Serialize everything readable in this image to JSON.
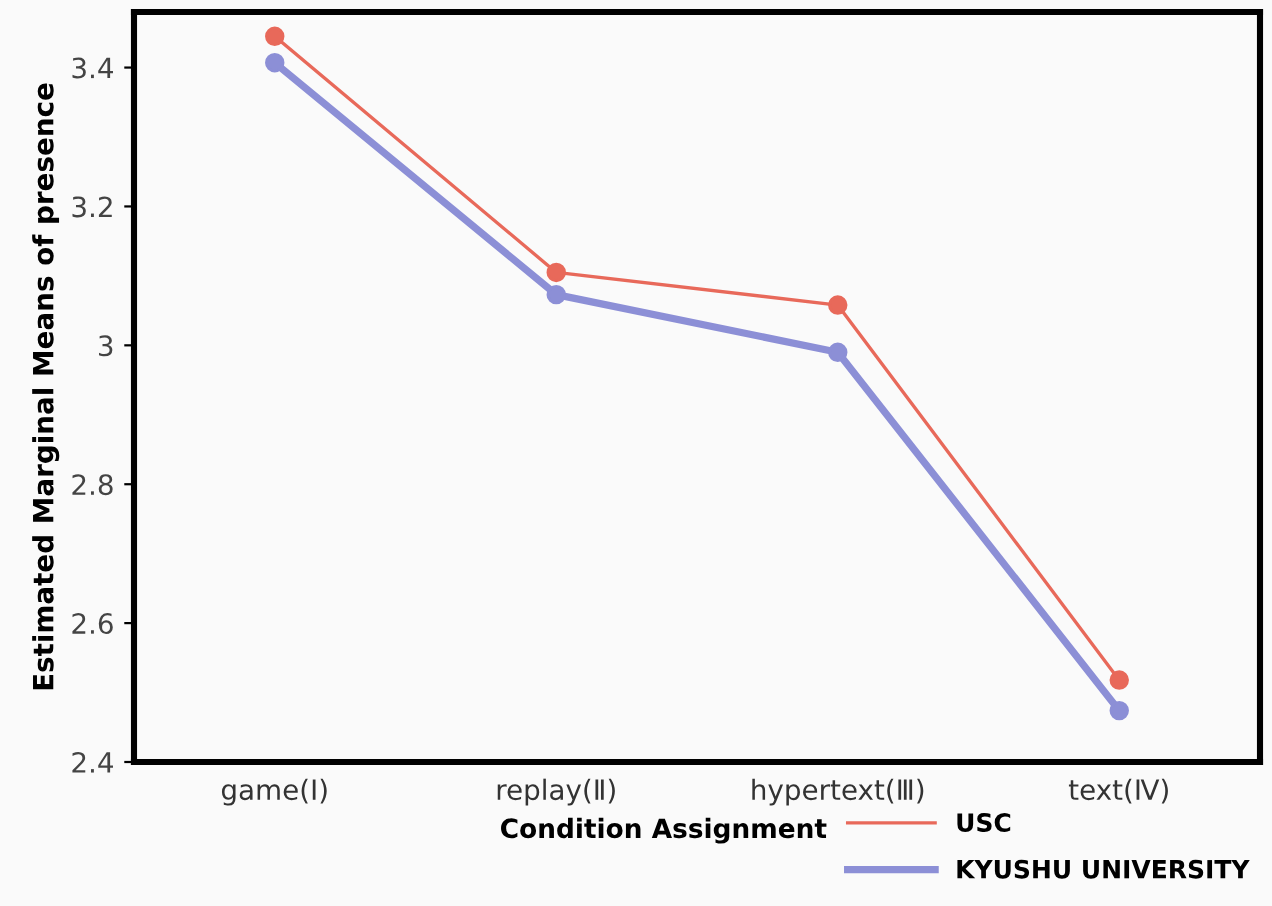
{
  "chart_data": {
    "type": "line",
    "ylabel": "Estimated Marginal Means of presence",
    "legend_title": "Condition Assignment",
    "categories": [
      "game(Ⅰ)",
      "replay(Ⅱ)",
      "hypertext(Ⅲ)",
      "text(Ⅳ)"
    ],
    "series": [
      {
        "name": "USC",
        "color": "#e8695a",
        "values": [
          3.445,
          3.105,
          3.058,
          2.518
        ]
      },
      {
        "name": "KYUSHU UNIVERSITY",
        "color": "#8c8fd6",
        "values": [
          3.407,
          3.073,
          2.99,
          2.474
        ]
      }
    ],
    "ylim": [
      2.4,
      3.48
    ],
    "yticks": [
      {
        "value": 2.4,
        "label": "2.4"
      },
      {
        "value": 2.6,
        "label": "2.6"
      },
      {
        "value": 2.8,
        "label": "2.8"
      },
      {
        "value": 3.0,
        "label": "3"
      },
      {
        "value": 3.2,
        "label": "3.2"
      },
      {
        "value": 3.4,
        "label": "3.4"
      }
    ],
    "grid": false,
    "legend": "bottom right",
    "marker": "circle",
    "line_style": "solid"
  }
}
